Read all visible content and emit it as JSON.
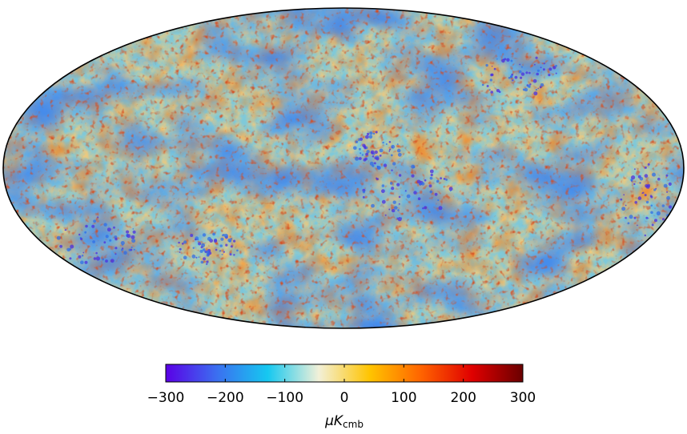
{
  "projection": "mollweide",
  "colormap": {
    "name": "planck",
    "stops": [
      "#5a00e6",
      "#3b6ff0",
      "#16c8f0",
      "#f2f0d8",
      "#ffc400",
      "#ff6400",
      "#e00000",
      "#6a0000"
    ]
  },
  "colorbar": {
    "min": -300,
    "max": 300,
    "ticks": [
      -300,
      -200,
      -100,
      0,
      100,
      200,
      300
    ],
    "tick_labels": [
      "−300",
      "−200",
      "−100",
      "0",
      "100",
      "200",
      "300"
    ],
    "unit": {
      "base": "μK",
      "subscript": "cmb"
    }
  },
  "map_features": {
    "background": "temperature-fluctuations",
    "cold_regions_note": "large blue patches"
  }
}
